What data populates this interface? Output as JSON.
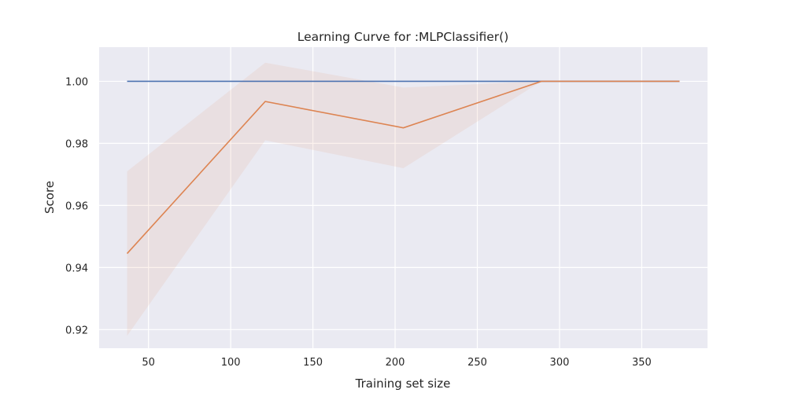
{
  "chart_data": {
    "type": "line",
    "title": "Learning Curve for :MLPClassifier()",
    "xlabel": "Training set size",
    "ylabel": "Score",
    "xlim": [
      20,
      390
    ],
    "ylim": [
      0.914,
      1.011
    ],
    "xticks": [
      50,
      100,
      150,
      200,
      250,
      300,
      350
    ],
    "yticks": [
      0.92,
      0.94,
      0.96,
      0.98,
      1.0
    ],
    "ytick_labels": [
      "0.92",
      "0.94",
      "0.96",
      "0.98",
      "1.00"
    ],
    "grid": true,
    "legend": "none",
    "x": [
      37,
      121,
      205,
      289,
      373
    ],
    "series": [
      {
        "color": "#4c72b0",
        "values": [
          1.0,
          1.0,
          1.0,
          1.0,
          1.0
        ],
        "band_lower": [
          1.0,
          1.0,
          1.0,
          1.0,
          1.0
        ],
        "band_upper": [
          1.0,
          1.0,
          1.0,
          1.0,
          1.0
        ]
      },
      {
        "color": "#dd8452",
        "values": [
          0.9445,
          0.9935,
          0.985,
          1.0,
          1.0
        ],
        "band_lower": [
          0.918,
          0.981,
          0.972,
          1.0,
          1.0
        ],
        "band_upper": [
          0.971,
          1.006,
          0.998,
          1.0,
          1.0
        ]
      }
    ]
  }
}
